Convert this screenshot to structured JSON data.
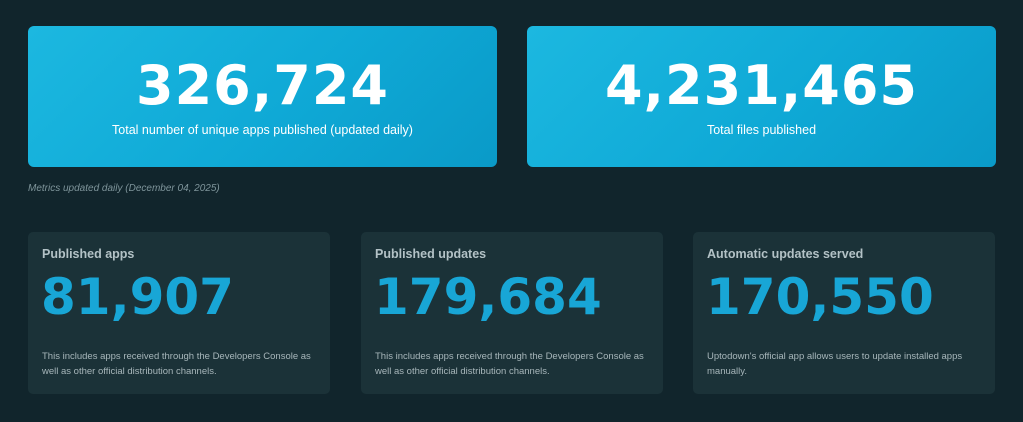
{
  "hero": [
    {
      "number": "326,724",
      "label": "Total number of unique apps published (updated daily)"
    },
    {
      "number": "4,231,465",
      "label": "Total files published"
    }
  ],
  "metrics_note": "Metrics updated daily (December 04, 2025)",
  "cards": [
    {
      "title": "Published apps",
      "number": "81,907",
      "desc": "This includes apps received through the Developers Console as well as other official distribution channels."
    },
    {
      "title": "Published updates",
      "number": "179,684",
      "desc": "This includes apps received through the Developers Console as well as other official distribution channels."
    },
    {
      "title": "Automatic updates served",
      "number": "170,550",
      "desc": "Uptodown's official app allows users to update installed apps manually."
    }
  ],
  "colors": {
    "background": "#11252c",
    "hero_gradient_start": "#1cb8e0",
    "hero_gradient_end": "#0a9ac8",
    "card_background": "#1b3238",
    "accent_number": "#18a6d6"
  }
}
